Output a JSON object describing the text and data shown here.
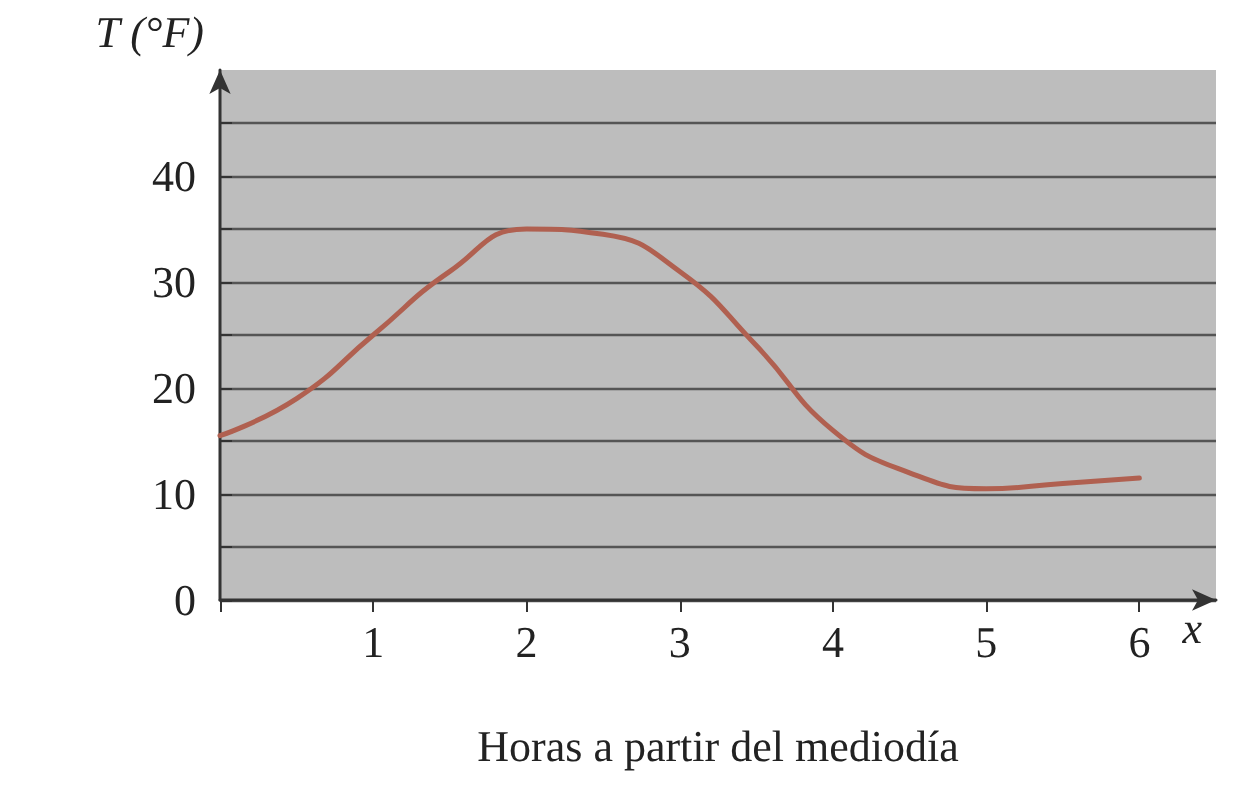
{
  "chart_data": {
    "type": "line",
    "xlabel": "Horas a partir del mediodía",
    "ylabel": "T (°F)",
    "annotations": [
      "x"
    ],
    "x": [
      0,
      0.5,
      1,
      1.5,
      2,
      2.5,
      3,
      3.5,
      4,
      4.5,
      5,
      5.5,
      6
    ],
    "series": [
      {
        "color": "#b06050",
        "values": [
          15.5,
          19,
          25,
          31,
          35,
          34.5,
          31,
          24,
          16,
          12,
          10.5,
          11,
          11.5
        ]
      }
    ],
    "xlim": [
      0,
      6.5
    ],
    "xticks": [
      {
        "value": 0,
        "label": null
      },
      1,
      2,
      3,
      4,
      5,
      6
    ],
    "ylim": [
      0,
      50
    ],
    "yticks": [
      0,
      {
        "value": 5,
        "label": null
      },
      10,
      {
        "value": 15,
        "label": null
      },
      20,
      {
        "value": 25,
        "label": null
      },
      30,
      {
        "value": 35,
        "label": null
      },
      40,
      {
        "value": 45,
        "label": null
      }
    ],
    "grid": "y",
    "marker": "none",
    "line_style": "solid"
  }
}
